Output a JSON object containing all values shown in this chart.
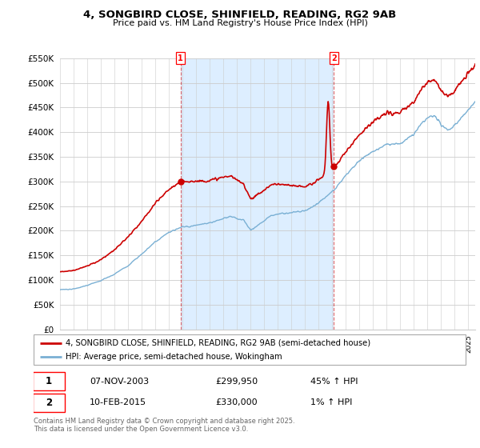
{
  "title_line1": "4, SONGBIRD CLOSE, SHINFIELD, READING, RG2 9AB",
  "title_line2": "Price paid vs. HM Land Registry's House Price Index (HPI)",
  "ylim": [
    0,
    550000
  ],
  "yticks": [
    0,
    50000,
    100000,
    150000,
    200000,
    250000,
    300000,
    350000,
    400000,
    450000,
    500000,
    550000
  ],
  "ytick_labels": [
    "£0",
    "£50K",
    "£100K",
    "£150K",
    "£200K",
    "£250K",
    "£300K",
    "£350K",
    "£400K",
    "£450K",
    "£500K",
    "£550K"
  ],
  "sale1_date_x": 2003.85,
  "sale1_price": 299950,
  "sale1_text": "07-NOV-2003",
  "sale1_price_text": "£299,950",
  "sale1_hpi_text": "45% ↑ HPI",
  "sale2_date_x": 2015.12,
  "sale2_price": 330000,
  "sale2_text": "10-FEB-2015",
  "sale2_price_text": "£330,000",
  "sale2_hpi_text": "1% ↑ HPI",
  "line_color_red": "#cc0000",
  "line_color_blue": "#7ab0d4",
  "shade_color": "#ddeeff",
  "grid_color": "#cccccc",
  "legend_label_red": "4, SONGBIRD CLOSE, SHINFIELD, READING, RG2 9AB (semi-detached house)",
  "legend_label_blue": "HPI: Average price, semi-detached house, Wokingham",
  "footnote": "Contains HM Land Registry data © Crown copyright and database right 2025.\nThis data is licensed under the Open Government Licence v3.0.",
  "xmin": 1995.0,
  "xmax": 2025.5
}
